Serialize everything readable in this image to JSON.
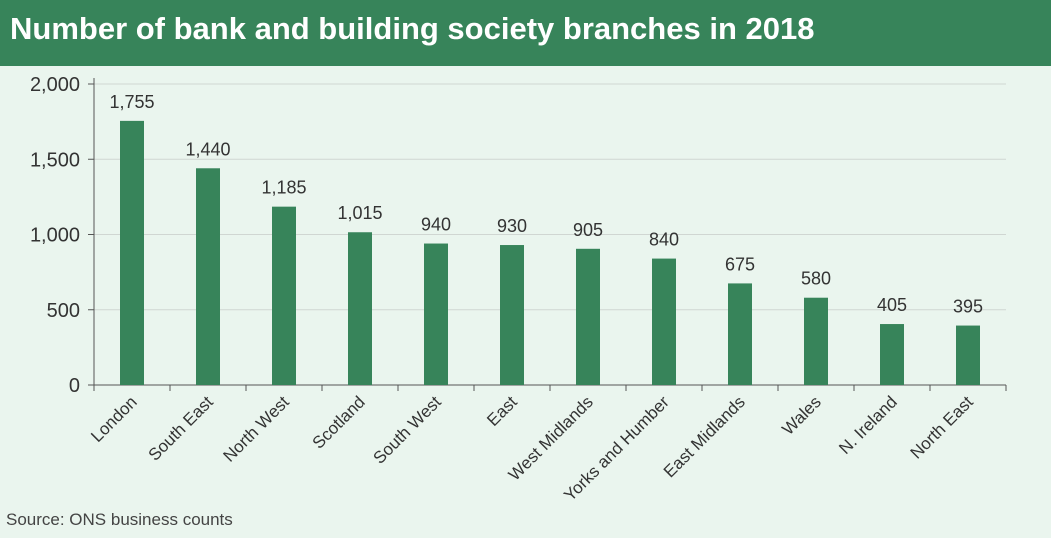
{
  "title": "Number of bank and building society branches in 2018",
  "source": "Source: ONS business counts",
  "colors": {
    "bar": "#37845a",
    "title_bg": "#37845a",
    "background": "#eaf5ee",
    "grid": "#d0d6d2",
    "axis": "#555555",
    "text": "#333333"
  },
  "chart_data": {
    "type": "bar",
    "categories": [
      "London",
      "South East",
      "North West",
      "Scotland",
      "South West",
      "East",
      "West Midlands",
      "Yorks and Humber",
      "East Midlands",
      "Wales",
      "N. Ireland",
      "North East"
    ],
    "values": [
      1755,
      1440,
      1185,
      1015,
      940,
      930,
      905,
      840,
      675,
      580,
      405,
      395
    ],
    "data_labels": [
      "1,755",
      "1,440",
      "1,185",
      "1,015",
      "940",
      "930",
      "905",
      "840",
      "675",
      "580",
      "405",
      "395"
    ],
    "y_ticks": [
      0,
      500,
      1000,
      1500,
      2000
    ],
    "y_tick_labels": [
      "0",
      "500",
      "1,000",
      "1,500",
      "2,000"
    ],
    "ylim": [
      0,
      2000
    ],
    "grid": true,
    "legend": "none"
  }
}
